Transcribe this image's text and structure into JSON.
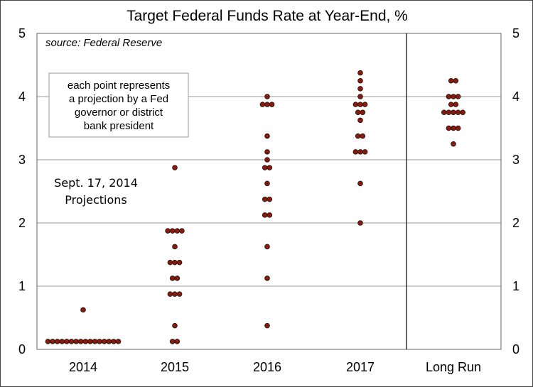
{
  "chart_data": {
    "type": "scatter",
    "title": "Target Federal Funds Rate at Year-End, %",
    "source": "source: Federal Reserve",
    "note_lines": [
      "each point represents",
      "a projection by a Fed",
      "governor or district",
      "bank president"
    ],
    "projection_label_lines": [
      "Sept. 17, 2014",
      "Projections"
    ],
    "categories": [
      "2014",
      "2015",
      "2016",
      "2017",
      "Long Run"
    ],
    "ylim": [
      0,
      5
    ],
    "yticks": [
      0,
      1,
      2,
      3,
      4,
      5
    ],
    "grid": true,
    "dot_color": "#8b1a0a",
    "dot_outline": "#111111",
    "dots": {
      "2014": [
        {
          "value": 0.625,
          "count": 1
        },
        {
          "value": 0.125,
          "count": 16
        }
      ],
      "2015": [
        {
          "value": 2.875,
          "count": 1
        },
        {
          "value": 1.875,
          "count": 4
        },
        {
          "value": 1.625,
          "count": 1
        },
        {
          "value": 1.375,
          "count": 3
        },
        {
          "value": 1.125,
          "count": 2
        },
        {
          "value": 0.875,
          "count": 3
        },
        {
          "value": 0.375,
          "count": 1
        },
        {
          "value": 0.125,
          "count": 2
        }
      ],
      "2016": [
        {
          "value": 4.0,
          "count": 1
        },
        {
          "value": 3.875,
          "count": 3
        },
        {
          "value": 3.375,
          "count": 1
        },
        {
          "value": 3.125,
          "count": 1
        },
        {
          "value": 3.0,
          "count": 1
        },
        {
          "value": 2.875,
          "count": 2
        },
        {
          "value": 2.625,
          "count": 1
        },
        {
          "value": 2.375,
          "count": 2
        },
        {
          "value": 2.125,
          "count": 2
        },
        {
          "value": 1.625,
          "count": 1
        },
        {
          "value": 1.125,
          "count": 1
        },
        {
          "value": 0.375,
          "count": 1
        }
      ],
      "2017": [
        {
          "value": 4.375,
          "count": 1
        },
        {
          "value": 4.25,
          "count": 1
        },
        {
          "value": 4.125,
          "count": 1
        },
        {
          "value": 4.0,
          "count": 1
        },
        {
          "value": 3.875,
          "count": 3
        },
        {
          "value": 3.75,
          "count": 2
        },
        {
          "value": 3.625,
          "count": 1
        },
        {
          "value": 3.375,
          "count": 2
        },
        {
          "value": 3.125,
          "count": 3
        },
        {
          "value": 2.625,
          "count": 1
        },
        {
          "value": 2.0,
          "count": 1
        }
      ],
      "Long Run": [
        {
          "value": 4.25,
          "count": 2
        },
        {
          "value": 4.0,
          "count": 3
        },
        {
          "value": 3.875,
          "count": 2
        },
        {
          "value": 3.75,
          "count": 5
        },
        {
          "value": 3.5,
          "count": 3
        },
        {
          "value": 3.25,
          "count": 1
        }
      ]
    }
  }
}
